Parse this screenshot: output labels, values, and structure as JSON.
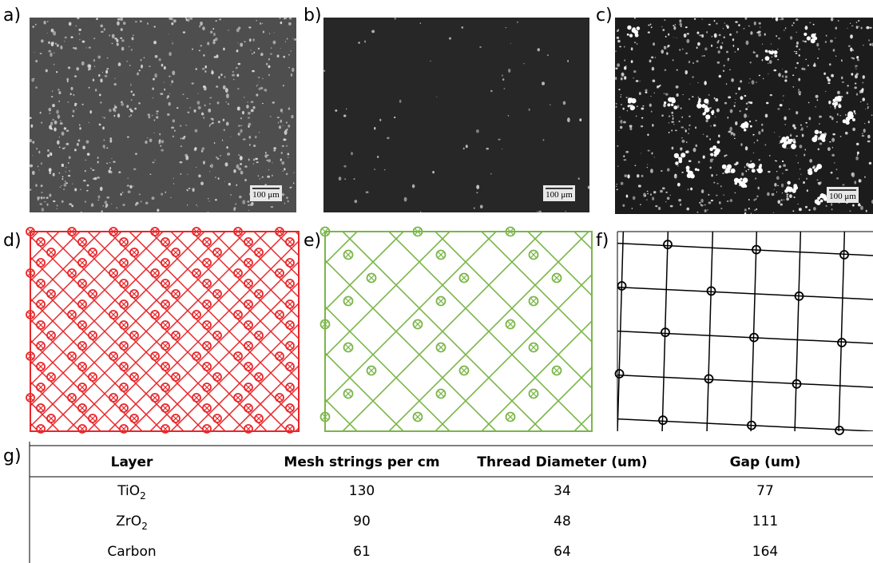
{
  "panels": {
    "a": "a)",
    "b": "b)",
    "c": "c)",
    "d": "d)",
    "e": "e)",
    "f": "f)",
    "g": "g)"
  },
  "scale_bars": [
    "100 μm",
    "100 μm",
    "100 μm"
  ],
  "table": {
    "header": [
      "Layer",
      "Mesh strings per cm",
      "Thread Diameter (um)",
      "Gap (um)"
    ],
    "rows": [
      [
        {
          "base": "TiO",
          "sub": "2"
        },
        130,
        34,
        77
      ],
      [
        {
          "base": "ZrO",
          "sub": "2"
        },
        90,
        48,
        111
      ],
      [
        "Carbon",
        61,
        64,
        164
      ]
    ]
  }
}
